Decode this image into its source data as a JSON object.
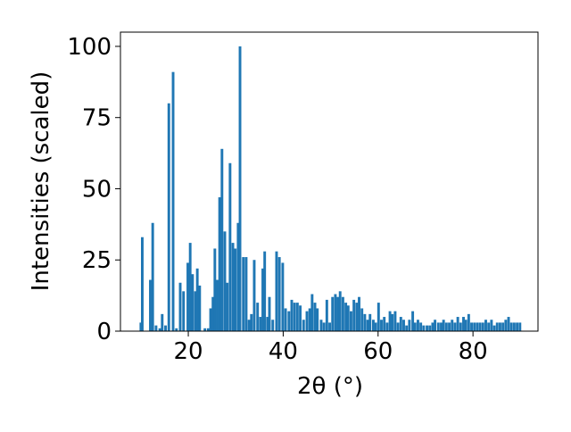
{
  "chart_data": {
    "type": "bar",
    "xlabel": "2θ (°)",
    "ylabel": "Intensities (scaled)",
    "color": "#1f77b4",
    "bar_width": 0.55,
    "x": [
      10.0,
      10.3,
      12.0,
      12.5,
      13.2,
      14.0,
      14.5,
      15.2,
      15.9,
      16.8,
      17.5,
      18.3,
      19.0,
      19.9,
      20.4,
      20.9,
      21.5,
      21.9,
      22.4,
      23.5,
      24.2,
      24.7,
      25.2,
      25.6,
      26.1,
      26.6,
      27.1,
      27.7,
      28.2,
      28.8,
      29.4,
      29.9,
      30.5,
      30.9,
      31.6,
      32.2,
      32.8,
      33.3,
      33.9,
      34.6,
      35.2,
      35.7,
      36.1,
      36.7,
      37.1,
      37.8,
      38.6,
      39.2,
      39.9,
      40.5,
      41.2,
      41.8,
      42.4,
      43.0,
      43.6,
      44.3,
      45.0,
      45.6,
      46.1,
      46.7,
      47.2,
      48.0,
      48.6,
      49.2,
      49.8,
      50.4,
      51.0,
      51.5,
      52.0,
      52.6,
      53.2,
      53.7,
      54.3,
      54.9,
      55.5,
      56.0,
      56.6,
      57.2,
      57.8,
      58.3,
      59.0,
      59.5,
      60.1,
      60.7,
      61.3,
      61.9,
      62.5,
      63.0,
      63.6,
      64.2,
      64.8,
      65.4,
      66.0,
      66.6,
      67.3,
      67.8,
      68.4,
      69.0,
      69.6,
      70.3,
      70.9,
      71.5,
      72.0,
      72.7,
      73.3,
      73.8,
      74.4,
      75.0,
      75.6,
      76.2,
      76.8,
      77.4,
      78.0,
      78.5,
      79.1,
      79.7,
      80.3,
      80.9,
      81.5,
      82.1,
      82.7,
      83.3,
      83.9,
      84.5,
      85.1,
      85.7,
      86.3,
      86.9,
      87.5,
      88.1,
      88.7,
      89.3,
      89.9
    ],
    "values": [
      3,
      33,
      18,
      38,
      2,
      1,
      6,
      2,
      80,
      91,
      1,
      17,
      14,
      24,
      31,
      20,
      14,
      22,
      16,
      1,
      1,
      8,
      12,
      29,
      18,
      47,
      64,
      35,
      17,
      59,
      31,
      29,
      38,
      100,
      26,
      26,
      4,
      6,
      25,
      10,
      5,
      22,
      28,
      5,
      12,
      4,
      28,
      26,
      24,
      8,
      7,
      11,
      10,
      10,
      9,
      4,
      7,
      8,
      13,
      10,
      8,
      4,
      3,
      11,
      3,
      12,
      13,
      12,
      14,
      12,
      10,
      9,
      7,
      11,
      10,
      12,
      8,
      6,
      4,
      6,
      4,
      3,
      10,
      4,
      5,
      3,
      7,
      6,
      7,
      3,
      5,
      4,
      2,
      4,
      7,
      3,
      4,
      3,
      2,
      2,
      2,
      3,
      4,
      3,
      3,
      4,
      3,
      3,
      4,
      3,
      5,
      3,
      5,
      4,
      6,
      3,
      3,
      3,
      3,
      3,
      4,
      3,
      4,
      2,
      3,
      3,
      3,
      4,
      5,
      3,
      3,
      3,
      3
    ],
    "xlim": [
      5.7,
      93.7
    ],
    "ylim": [
      0,
      105
    ],
    "xticks": [
      20,
      40,
      60,
      80
    ],
    "yticks": [
      0,
      25,
      50,
      75,
      100
    ]
  }
}
